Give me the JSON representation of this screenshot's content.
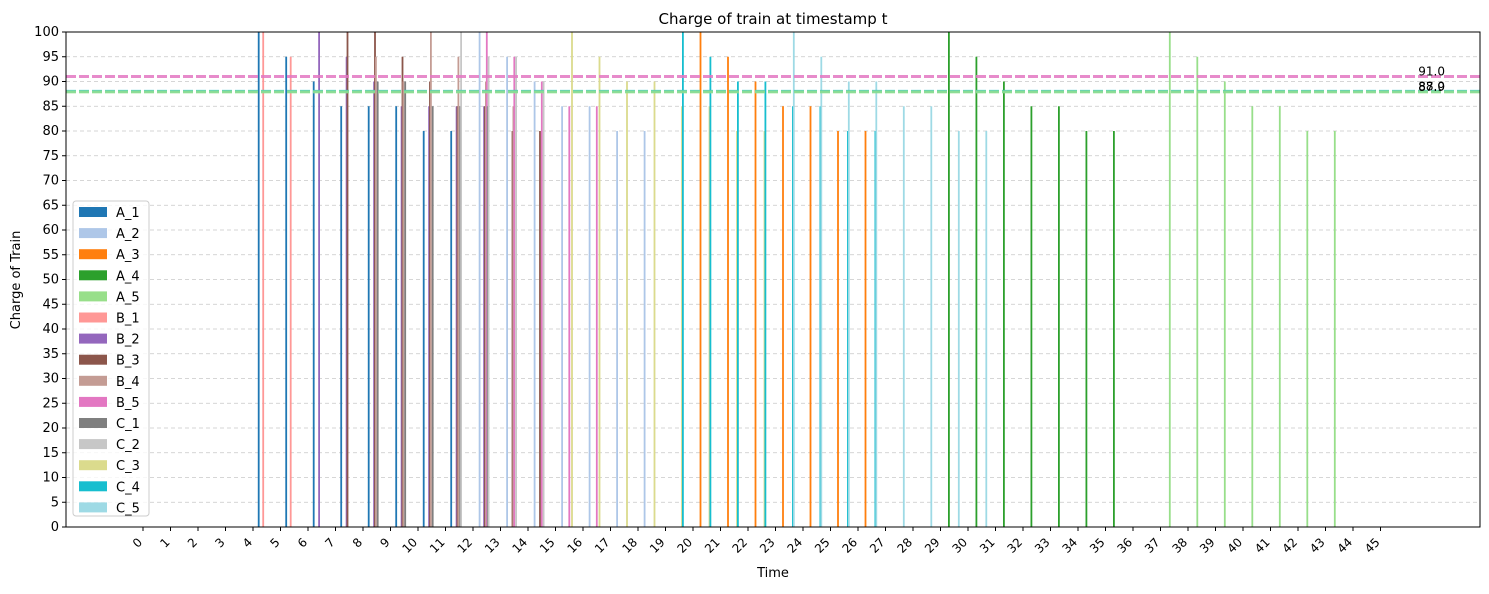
{
  "chart_data": {
    "type": "bar",
    "title": "Charge of train at timestamp t",
    "xlabel": "Time",
    "ylabel": "Charge of Train",
    "ylim": [
      0,
      100
    ],
    "y_ticks": [
      0,
      5,
      10,
      15,
      20,
      25,
      30,
      35,
      40,
      45,
      50,
      55,
      60,
      65,
      70,
      75,
      80,
      85,
      90,
      95,
      100
    ],
    "x_ticks": [
      0,
      1,
      2,
      3,
      4,
      5,
      6,
      7,
      8,
      9,
      10,
      11,
      12,
      13,
      14,
      15,
      16,
      17,
      18,
      19,
      20,
      21,
      22,
      23,
      24,
      25,
      26,
      27,
      28,
      29,
      30,
      31,
      32,
      33,
      34,
      35,
      36,
      37,
      38,
      39,
      40,
      41,
      42,
      43,
      44,
      45
    ],
    "x_tick_rotation": 45,
    "grid": "y-dashed",
    "legend_position": "lower-left",
    "reference_lines": [
      {
        "value": 91.0,
        "label": "91.0",
        "color": "#e377c2"
      },
      {
        "value": 88.0,
        "label": "88.0",
        "color": "#17becf"
      },
      {
        "value": 87.9,
        "label": "87.9",
        "color": "#98df8a"
      }
    ],
    "series": [
      {
        "name": "A_1",
        "color": "#1f77b4",
        "points": [
          [
            4,
            100
          ],
          [
            5,
            95
          ],
          [
            6,
            90
          ],
          [
            7,
            85
          ],
          [
            8,
            85
          ],
          [
            9,
            85
          ],
          [
            10,
            80
          ],
          [
            11,
            80
          ]
        ]
      },
      {
        "name": "A_2",
        "color": "#aec7e8",
        "points": [
          [
            12,
            100
          ],
          [
            13,
            95
          ],
          [
            14,
            90
          ],
          [
            15,
            85
          ],
          [
            16,
            85
          ],
          [
            17,
            80
          ],
          [
            18,
            80
          ]
        ]
      },
      {
        "name": "A_3",
        "color": "#ff7f0e",
        "points": [
          [
            20,
            100
          ],
          [
            21,
            95
          ],
          [
            22,
            90
          ],
          [
            23,
            85
          ],
          [
            24,
            85
          ],
          [
            25,
            80
          ],
          [
            26,
            80
          ]
        ]
      },
      {
        "name": "A_4",
        "color": "#2ca02c",
        "points": [
          [
            29,
            100
          ],
          [
            30,
            95
          ],
          [
            31,
            90
          ],
          [
            32,
            85
          ],
          [
            33,
            85
          ],
          [
            34,
            80
          ],
          [
            35,
            80
          ]
        ]
      },
      {
        "name": "A_5",
        "color": "#98df8a",
        "points": [
          [
            37,
            100
          ],
          [
            38,
            95
          ],
          [
            39,
            90
          ],
          [
            40,
            85
          ],
          [
            41,
            85
          ],
          [
            42,
            80
          ],
          [
            43,
            80
          ]
        ]
      },
      {
        "name": "B_1",
        "color": "#ff9896",
        "points": [
          [
            4,
            100
          ],
          [
            5,
            95
          ]
        ]
      },
      {
        "name": "B_2",
        "color": "#9467bd",
        "points": [
          [
            6,
            100
          ],
          [
            7,
            95
          ],
          [
            8,
            90
          ],
          [
            9,
            85
          ],
          [
            10,
            85
          ],
          [
            11,
            85
          ],
          [
            12,
            85
          ]
        ]
      },
      {
        "name": "B_3",
        "color": "#8c564b",
        "points": [
          [
            7,
            100
          ],
          [
            8,
            100
          ],
          [
            9,
            95
          ],
          [
            10,
            90
          ],
          [
            11,
            85
          ],
          [
            12,
            85
          ],
          [
            13,
            80
          ],
          [
            14,
            80
          ]
        ]
      },
      {
        "name": "B_4",
        "color": "#c49c94",
        "points": [
          [
            8,
            95
          ],
          [
            9,
            90
          ],
          [
            10,
            100
          ],
          [
            11,
            95
          ],
          [
            12,
            90
          ],
          [
            13,
            85
          ]
        ]
      },
      {
        "name": "B_5",
        "color": "#e377c2",
        "points": [
          [
            12,
            100
          ],
          [
            13,
            95
          ],
          [
            14,
            90
          ],
          [
            15,
            85
          ],
          [
            16,
            85
          ]
        ]
      },
      {
        "name": "C_1",
        "color": "#7f7f7f",
        "points": [
          [
            8,
            90
          ],
          [
            9,
            90
          ],
          [
            10,
            85
          ],
          [
            11,
            85
          ],
          [
            12,
            85
          ]
        ]
      },
      {
        "name": "C_2",
        "color": "#c7c7c7",
        "points": [
          [
            11,
            100
          ],
          [
            12,
            95
          ],
          [
            13,
            95
          ],
          [
            14,
            90
          ]
        ]
      },
      {
        "name": "C_3",
        "color": "#dbdb8d",
        "points": [
          [
            15,
            100
          ],
          [
            16,
            95
          ],
          [
            17,
            90
          ],
          [
            18,
            90
          ],
          [
            19,
            85
          ],
          [
            20,
            85
          ],
          [
            21,
            80
          ],
          [
            22,
            80
          ]
        ]
      },
      {
        "name": "C_4",
        "color": "#17becf",
        "points": [
          [
            19,
            100
          ],
          [
            20,
            95
          ],
          [
            21,
            90
          ],
          [
            22,
            90
          ],
          [
            23,
            85
          ],
          [
            24,
            85
          ],
          [
            25,
            80
          ],
          [
            26,
            80
          ]
        ]
      },
      {
        "name": "C_5",
        "color": "#9edae5",
        "points": [
          [
            23,
            100
          ],
          [
            24,
            95
          ],
          [
            25,
            90
          ],
          [
            26,
            90
          ],
          [
            27,
            85
          ],
          [
            28,
            85
          ],
          [
            29,
            80
          ],
          [
            30,
            80
          ]
        ]
      }
    ]
  }
}
